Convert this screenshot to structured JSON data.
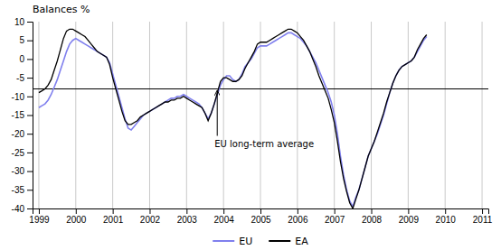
{
  "chart_data": {
    "type": "line",
    "y_label": "Balances %",
    "x": [
      1999,
      1999.0833333333,
      1999.1666666667,
      1999.25,
      1999.3333333333,
      1999.4166666667,
      1999.5,
      1999.5833333333,
      1999.6666666667,
      1999.75,
      1999.8333333333,
      1999.9166666667,
      2000,
      2000.0833333333,
      2000.1666666667,
      2000.25,
      2000.3333333333,
      2000.4166666667,
      2000.5,
      2000.5833333333,
      2000.6666666667,
      2000.75,
      2000.8333333333,
      2000.9166666667,
      2001,
      2001.0833333333,
      2001.1666666667,
      2001.25,
      2001.3333333333,
      2001.4166666667,
      2001.5,
      2001.5833333333,
      2001.6666666667,
      2001.75,
      2001.8333333333,
      2001.9166666667,
      2002,
      2002.0833333333,
      2002.1666666667,
      2002.25,
      2002.3333333333,
      2002.4166666667,
      2002.5,
      2002.5833333333,
      2002.6666666667,
      2002.75,
      2002.8333333333,
      2002.9166666667,
      2003,
      2003.0833333333,
      2003.1666666667,
      2003.25,
      2003.3333333333,
      2003.4166666667,
      2003.5,
      2003.5833333333,
      2003.6666666667,
      2003.75,
      2003.8333333333,
      2003.9166666667,
      2004,
      2004.0833333333,
      2004.1666666667,
      2004.25,
      2004.3333333333,
      2004.4166666667,
      2004.5,
      2004.5833333333,
      2004.6666666667,
      2004.75,
      2004.8333333333,
      2004.9166666667,
      2005,
      2005.0833333333,
      2005.1666666667,
      2005.25,
      2005.3333333333,
      2005.4166666667,
      2005.5,
      2005.5833333333,
      2005.6666666667,
      2005.75,
      2005.8333333333,
      2005.9166666667,
      2006,
      2006.0833333333,
      2006.1666666667,
      2006.25,
      2006.3333333333,
      2006.4166666667,
      2006.5,
      2006.5833333333,
      2006.6666666667,
      2006.75,
      2006.8333333333,
      2006.9166666667,
      2007,
      2007.0833333333,
      2007.1666666667,
      2007.25,
      2007.3333333333,
      2007.4166666667,
      2007.5,
      2007.5833333333,
      2007.6666666667,
      2007.75,
      2007.8333333333,
      2007.9166666667,
      2008,
      2008.0833333333,
      2008.1666666667,
      2008.25,
      2008.3333333333,
      2008.4166666667,
      2008.5,
      2008.5833333333,
      2008.6666666667,
      2008.75,
      2008.8333333333,
      2008.9166666667,
      2009,
      2009.0833333333,
      2009.1666666667,
      2009.25,
      2009.3333333333,
      2009.4166666667,
      2009.5
    ],
    "series": [
      {
        "name": "EU",
        "color": "#8080ee",
        "values": [
          -13.0,
          -12.5,
          -12.0,
          -11.0,
          -9.5,
          -7.5,
          -5.5,
          -3.0,
          -0.5,
          2.0,
          4.0,
          5.0,
          5.5,
          5.0,
          4.5,
          4.0,
          3.5,
          3.0,
          2.5,
          2.0,
          1.5,
          1.0,
          0.5,
          -1.0,
          -4.0,
          -7.0,
          -10.0,
          -13.0,
          -16.0,
          -18.5,
          -19.0,
          -18.0,
          -17.0,
          -16.0,
          -15.0,
          -14.5,
          -14.0,
          -13.5,
          -13.0,
          -12.5,
          -12.0,
          -11.5,
          -11.0,
          -10.5,
          -10.5,
          -10.0,
          -10.0,
          -9.5,
          -10.0,
          -10.5,
          -11.0,
          -11.5,
          -12.0,
          -13.0,
          -14.5,
          -16.0,
          -14.5,
          -12.0,
          -9.5,
          -7.0,
          -5.5,
          -4.5,
          -4.5,
          -5.5,
          -6.0,
          -5.5,
          -4.0,
          -2.0,
          -1.0,
          0.0,
          1.5,
          3.0,
          3.5,
          3.5,
          3.5,
          4.0,
          4.5,
          5.0,
          5.5,
          6.0,
          6.5,
          7.0,
          7.0,
          6.5,
          6.0,
          5.5,
          4.5,
          3.5,
          2.0,
          0.5,
          -1.0,
          -3.0,
          -5.0,
          -7.0,
          -9.0,
          -11.5,
          -15.0,
          -20.0,
          -26.0,
          -31.0,
          -35.0,
          -38.0,
          -39.5,
          -37.0,
          -35.0,
          -32.0,
          -29.0,
          -26.0,
          -24.0,
          -22.0,
          -20.0,
          -17.5,
          -15.0,
          -12.0,
          -9.0,
          -6.5,
          -4.5,
          -3.0,
          -2.0,
          -1.5,
          -1.0,
          -0.5,
          0.5,
          2.0,
          3.5,
          5.0,
          6.0
        ]
      },
      {
        "name": "EA",
        "color": "#000000",
        "values": [
          -9.0,
          -8.5,
          -8.0,
          -7.0,
          -5.5,
          -3.0,
          -0.5,
          2.5,
          5.5,
          7.5,
          8.0,
          8.0,
          7.5,
          7.0,
          6.5,
          6.0,
          5.0,
          4.0,
          3.0,
          2.0,
          1.5,
          1.0,
          0.5,
          -1.5,
          -5.0,
          -8.0,
          -11.0,
          -14.0,
          -16.5,
          -17.5,
          -17.5,
          -17.0,
          -16.5,
          -15.5,
          -15.0,
          -14.5,
          -14.0,
          -13.5,
          -13.0,
          -12.5,
          -12.0,
          -11.5,
          -11.5,
          -11.0,
          -11.0,
          -10.5,
          -10.5,
          -10.0,
          -10.5,
          -11.0,
          -11.5,
          -12.0,
          -12.5,
          -13.0,
          -14.5,
          -16.5,
          -14.5,
          -12.0,
          -9.0,
          -6.0,
          -5.0,
          -5.0,
          -5.5,
          -6.0,
          -6.0,
          -5.5,
          -4.5,
          -2.5,
          -1.0,
          0.5,
          2.0,
          4.0,
          4.5,
          4.5,
          4.5,
          5.0,
          5.5,
          6.0,
          6.5,
          7.0,
          7.5,
          8.0,
          8.0,
          7.5,
          7.0,
          6.0,
          5.0,
          3.5,
          2.0,
          0.0,
          -2.0,
          -4.5,
          -6.5,
          -8.5,
          -10.5,
          -13.5,
          -17.0,
          -22.0,
          -27.5,
          -32.0,
          -35.5,
          -38.5,
          -40.0,
          -37.5,
          -35.0,
          -32.0,
          -29.0,
          -26.0,
          -24.0,
          -22.0,
          -19.5,
          -17.0,
          -14.5,
          -11.5,
          -9.0,
          -6.5,
          -4.5,
          -3.0,
          -2.0,
          -1.5,
          -1.0,
          -0.5,
          0.5,
          2.5,
          4.0,
          5.5,
          6.5
        ]
      }
    ],
    "reference_lines": [
      {
        "y": -8.0,
        "color": "#000000",
        "annotation": "EU long-term average",
        "annotation_x": 2003.83
      }
    ],
    "xlim": [
      1998.83,
      2011.17
    ],
    "xticks": [
      1999,
      2000,
      2001,
      2002,
      2003,
      2004,
      2005,
      2006,
      2007,
      2008,
      2009,
      2010,
      2011
    ],
    "ylim": [
      -40,
      10
    ],
    "yticks": [
      10,
      5,
      0,
      -5,
      -10,
      -15,
      -20,
      -25,
      -30,
      -35,
      -40
    ],
    "grid": "x",
    "legend": "bottom"
  }
}
